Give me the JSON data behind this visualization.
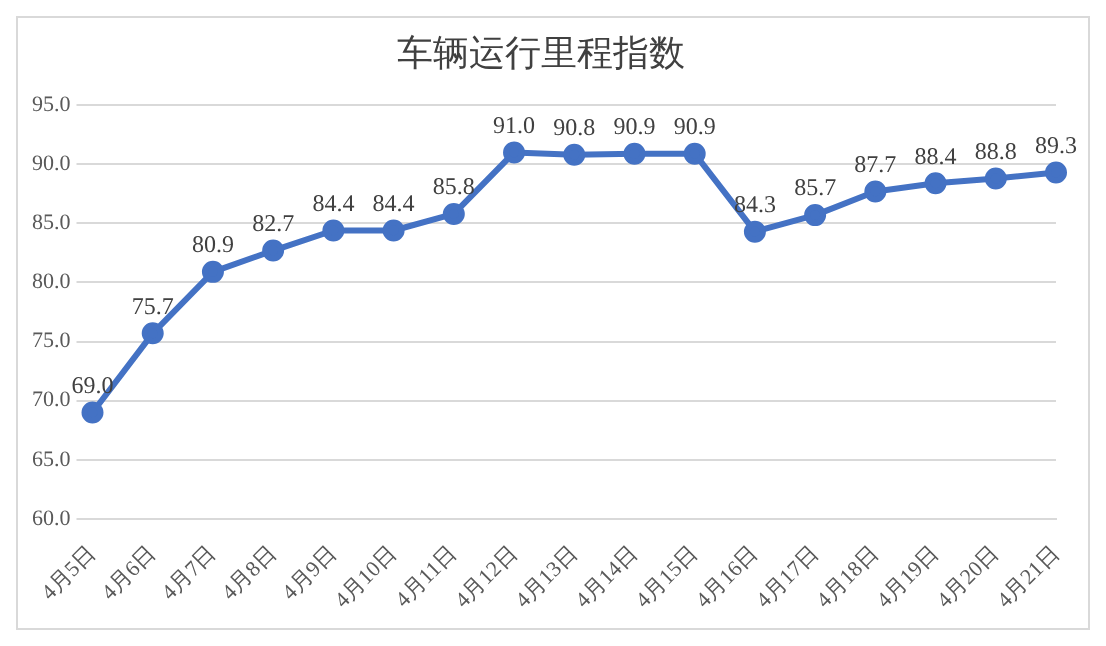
{
  "chart_data": {
    "type": "line",
    "title": "车辆运行里程指数",
    "categories": [
      "4月5日",
      "4月6日",
      "4月7日",
      "4月8日",
      "4月9日",
      "4月10日",
      "4月11日",
      "4月12日",
      "4月13日",
      "4月14日",
      "4月15日",
      "4月16日",
      "4月17日",
      "4月18日",
      "4月19日",
      "4月20日",
      "4月21日"
    ],
    "series": [
      {
        "color": "#4472c4",
        "values": [
          69.0,
          75.7,
          80.9,
          82.7,
          84.4,
          84.4,
          85.8,
          91.0,
          90.8,
          90.9,
          90.9,
          84.3,
          85.7,
          87.7,
          88.4,
          88.8,
          89.3
        ],
        "value_labels": [
          "69.0",
          "75.7",
          "80.9",
          "82.7",
          "84.4",
          "84.4",
          "85.8",
          "91.0",
          "90.8",
          "90.9",
          "90.9",
          "84.3",
          "85.7",
          "87.7",
          "88.4",
          "88.8",
          "89.3"
        ]
      }
    ],
    "ylim": [
      60,
      95
    ],
    "yticks": [
      {
        "value": 60,
        "label": "60.0"
      },
      {
        "value": 65,
        "label": "65.0"
      },
      {
        "value": 70,
        "label": "70.0"
      },
      {
        "value": 75,
        "label": "75.0"
      },
      {
        "value": 80,
        "label": "80.0"
      },
      {
        "value": 85,
        "label": "85.0"
      },
      {
        "value": 90,
        "label": "90.0"
      },
      {
        "value": 95,
        "label": "95.0"
      }
    ],
    "grid": "y",
    "legend": false,
    "marker": "circle",
    "line_style": "solid"
  }
}
